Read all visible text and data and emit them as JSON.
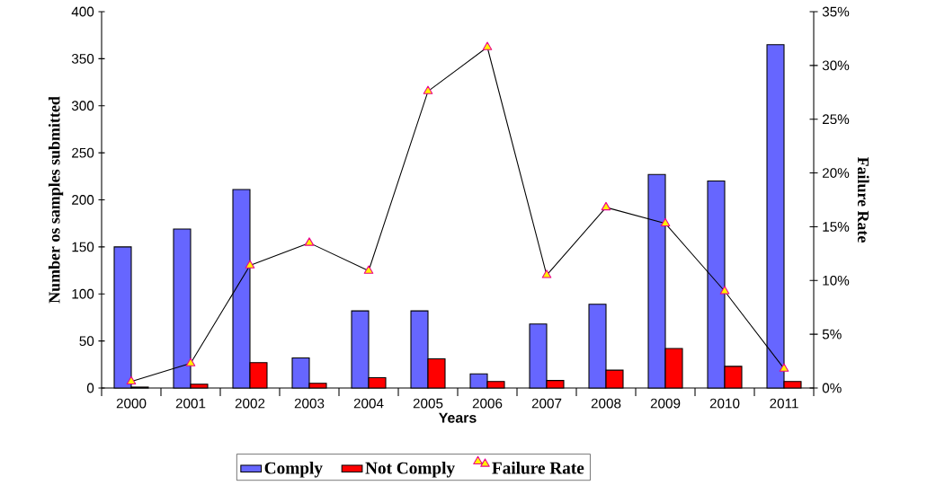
{
  "chart_data": {
    "type": "bar",
    "categories": [
      "2000",
      "2001",
      "2002",
      "2003",
      "2004",
      "2005",
      "2006",
      "2007",
      "2008",
      "2009",
      "2010",
      "2011"
    ],
    "xlabel": "Years",
    "ylabel": "Number os samples submitted",
    "y2label": "Failure Rate",
    "series": [
      {
        "name": "Comply",
        "color": "#6666ff",
        "values": [
          150,
          169,
          211,
          32,
          82,
          82,
          15,
          68,
          89,
          227,
          220,
          365
        ]
      },
      {
        "name": "Not Comply",
        "color": "#ff0000",
        "values": [
          1,
          4,
          27,
          5,
          11,
          31,
          7,
          8,
          19,
          42,
          23,
          7
        ]
      },
      {
        "name": "Failure Rate",
        "type": "line",
        "axis": "y2",
        "marker": "triangle",
        "color": "#000000",
        "values": [
          0.6,
          2.3,
          11.4,
          13.5,
          10.9,
          27.6,
          31.7,
          10.5,
          16.8,
          15.3,
          9.0,
          1.8
        ]
      }
    ],
    "ylim": [
      0,
      400
    ],
    "yticks": [
      0,
      50,
      100,
      150,
      200,
      250,
      300,
      350,
      400
    ],
    "y2lim": [
      0,
      35
    ],
    "y2ticks": [
      {
        "value": 0,
        "label": "0%"
      },
      {
        "value": 5,
        "label": "5%"
      },
      {
        "value": 10,
        "label": "10%"
      },
      {
        "value": 15,
        "label": "15%"
      },
      {
        "value": 20,
        "label": "20%"
      },
      {
        "value": 25,
        "label": "25%"
      },
      {
        "value": 30,
        "label": "30%"
      },
      {
        "value": 35,
        "label": "35%"
      }
    ],
    "legend": "bottom"
  }
}
